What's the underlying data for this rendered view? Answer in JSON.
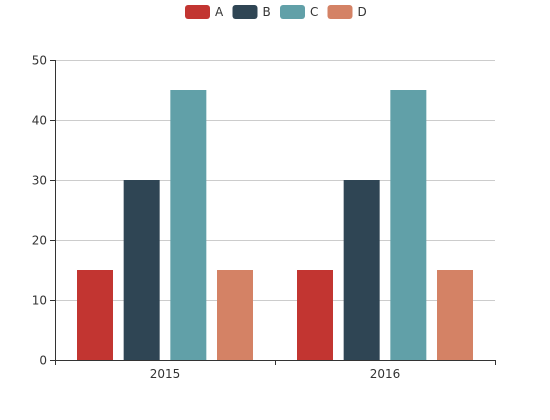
{
  "chart_data": {
    "type": "bar",
    "categories": [
      "2015",
      "2016"
    ],
    "series": [
      {
        "name": "A",
        "values": [
          15,
          15
        ],
        "color": "#c23531"
      },
      {
        "name": "B",
        "values": [
          30,
          30
        ],
        "color": "#2f4554"
      },
      {
        "name": "C",
        "values": [
          45,
          45
        ],
        "color": "#61a0a8"
      },
      {
        "name": "D",
        "values": [
          15,
          15
        ],
        "color": "#d48265"
      }
    ],
    "yticks": [
      "0",
      "10",
      "20",
      "30",
      "40",
      "50"
    ],
    "ylim": [
      0,
      50
    ],
    "grid": true,
    "legend_position": "top-center",
    "title": "",
    "xlabel": "",
    "ylabel": ""
  }
}
